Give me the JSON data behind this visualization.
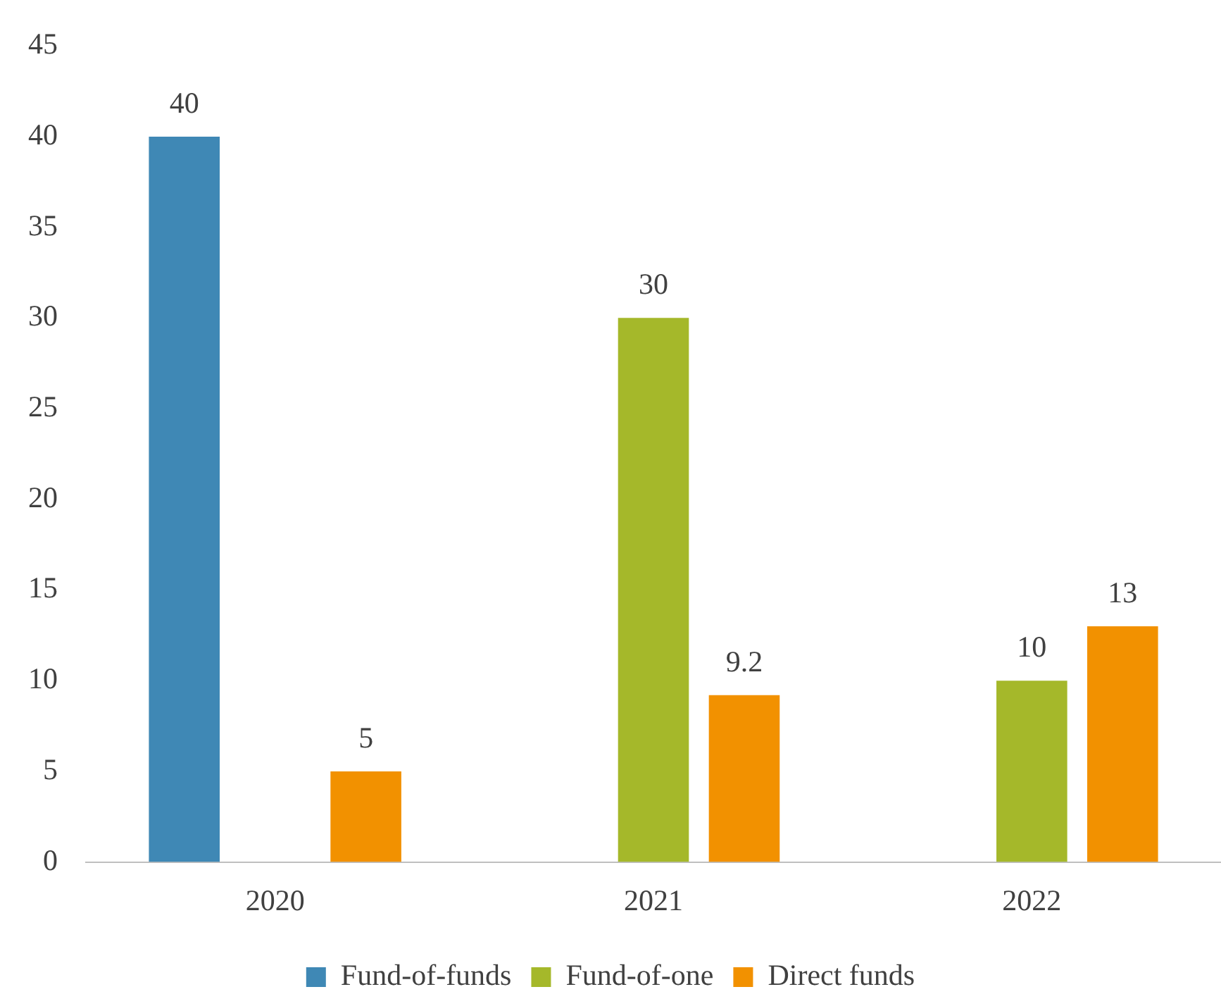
{
  "chart_data": {
    "type": "bar",
    "categories": [
      "2020",
      "2021",
      "2022"
    ],
    "series": [
      {
        "name": "Fund-of-funds",
        "color": "#3f88b5",
        "values": [
          40,
          null,
          null
        ]
      },
      {
        "name": "Fund-of-one",
        "color": "#a5b82a",
        "values": [
          null,
          30,
          10
        ]
      },
      {
        "name": "Direct funds",
        "color": "#f29100",
        "values": [
          5,
          9.2,
          13
        ]
      }
    ],
    "ylim": [
      0,
      45
    ],
    "yticks": [
      0,
      5,
      10,
      15,
      20,
      25,
      30,
      35,
      40,
      45
    ],
    "grid": false,
    "legend": "bottom",
    "data_labels": true
  }
}
